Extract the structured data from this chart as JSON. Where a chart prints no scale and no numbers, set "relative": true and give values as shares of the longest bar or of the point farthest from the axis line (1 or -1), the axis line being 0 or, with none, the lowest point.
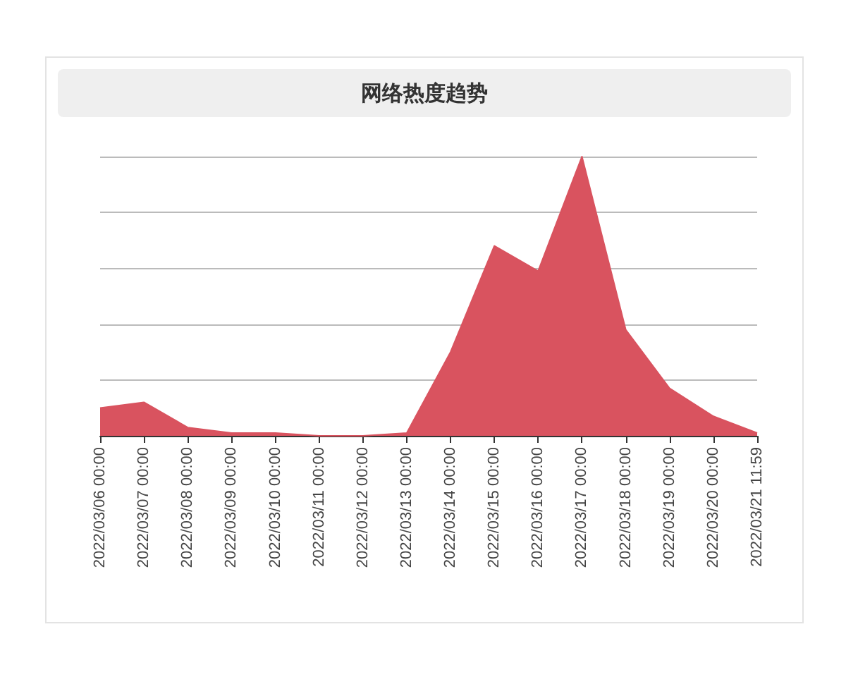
{
  "chart_data": {
    "type": "area",
    "title": "网络热度趋势",
    "relative": true,
    "grid": "y",
    "marker": "none",
    "categories": [
      "2022/03/06 00:00",
      "2022/03/07 00:00",
      "2022/03/08 00:00",
      "2022/03/09 00:00",
      "2022/03/10 00:00",
      "2022/03/11 00:00",
      "2022/03/12 00:00",
      "2022/03/13 00:00",
      "2022/03/14 00:00",
      "2022/03/15 00:00",
      "2022/03/16 00:00",
      "2022/03/17 00:00",
      "2022/03/18 00:00",
      "2022/03/19 00:00",
      "2022/03/20 00:00",
      "2022/03/21 11:59"
    ],
    "series": [
      {
        "color": "#d9535f",
        "values": [
          0.1,
          0.12,
          0.03,
          0.01,
          0.01,
          0,
          0,
          0.01,
          0.3,
          0.68,
          0.59,
          1,
          0.38,
          0.17,
          0.07,
          0.01
        ]
      }
    ]
  }
}
